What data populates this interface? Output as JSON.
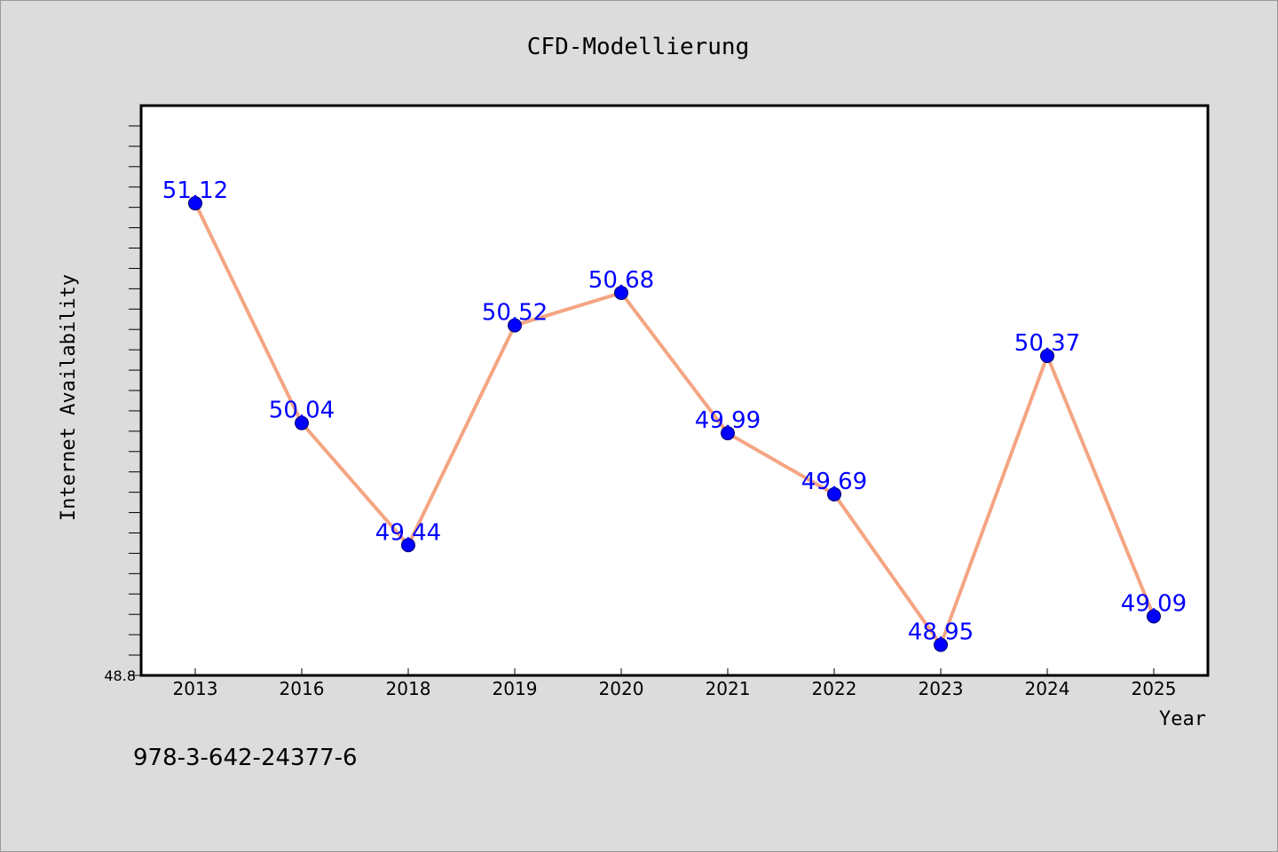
{
  "footer_text": "978-3-642-24377-6",
  "chart_data": {
    "type": "line",
    "title": "CFD-Modellierung",
    "xlabel": "Year",
    "ylabel": "Internet Availability",
    "categories": [
      "2013",
      "2016",
      "2018",
      "2019",
      "2020",
      "2021",
      "2022",
      "2023",
      "2024",
      "2025"
    ],
    "values": [
      51.12,
      50.04,
      49.44,
      50.52,
      50.68,
      49.99,
      49.69,
      48.95,
      50.37,
      49.09
    ],
    "value_labels": [
      "51.12",
      "50.04",
      "49.44",
      "50.52",
      "50.68",
      "49.99",
      "49.69",
      "48.95",
      "50.37",
      "49.09"
    ],
    "y_tick_labels": [
      "48.8"
    ],
    "ylim": [
      48.8,
      51.6
    ],
    "grid": false,
    "colors": {
      "line": "#f4a582",
      "marker": "#0000ff",
      "label": "#0000ff",
      "background": "#dcdcdc",
      "plot_background": "#ffffff"
    }
  }
}
